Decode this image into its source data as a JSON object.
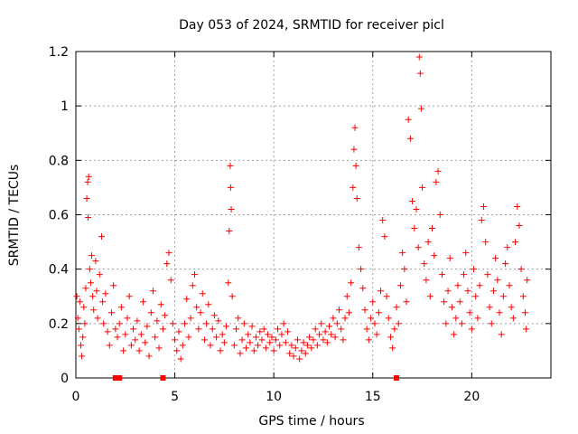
{
  "chart_data": {
    "type": "scatter",
    "title": "Day 053 of 2024, SRMTID for receiver picl",
    "xlabel": "GPS time / hours",
    "ylabel": "SRMTID / TECUs",
    "xlim": [
      0,
      24
    ],
    "ylim": [
      0,
      1.2
    ],
    "x_ticks": [
      0,
      5,
      10,
      15,
      20
    ],
    "x_tick_labels": [
      "0",
      "5",
      "10",
      "15",
      "20"
    ],
    "y_ticks": [
      0,
      0.2,
      0.4,
      0.6,
      0.8,
      1.0,
      1.2
    ],
    "y_tick_labels": [
      "0",
      "0.2",
      "0.4",
      "0.6",
      "0.8",
      "1",
      "1.2"
    ],
    "grid": true,
    "marker": "plus",
    "color": "#ff0000",
    "series": [
      {
        "name": "SRMTID",
        "points": [
          [
            0.05,
            0.3
          ],
          [
            0.1,
            0.22
          ],
          [
            0.15,
            0.18
          ],
          [
            0.2,
            0.28
          ],
          [
            0.25,
            0.12
          ],
          [
            0.3,
            0.08
          ],
          [
            0.35,
            0.15
          ],
          [
            0.4,
            0.26
          ],
          [
            0.45,
            0.2
          ],
          [
            0.5,
            0.33
          ],
          [
            0.55,
            0.66
          ],
          [
            0.6,
            0.72
          ],
          [
            0.62,
            0.59
          ],
          [
            0.65,
            0.74
          ],
          [
            0.7,
            0.4
          ],
          [
            0.75,
            0.35
          ],
          [
            0.8,
            0.45
          ],
          [
            0.85,
            0.3
          ],
          [
            0.9,
            0.25
          ],
          [
            1.0,
            0.43
          ],
          [
            1.05,
            0.32
          ],
          [
            1.1,
            0.22
          ],
          [
            1.2,
            0.38
          ],
          [
            1.3,
            0.52
          ],
          [
            1.35,
            0.28
          ],
          [
            1.4,
            0.2
          ],
          [
            1.5,
            0.31
          ],
          [
            1.6,
            0.17
          ],
          [
            1.7,
            0.12
          ],
          [
            1.8,
            0.24
          ],
          [
            1.9,
            0.34
          ],
          [
            2.0,
            0.18
          ],
          [
            2.1,
            0.15
          ],
          [
            2.2,
            0.2
          ],
          [
            2.3,
            0.26
          ],
          [
            2.4,
            0.1
          ],
          [
            2.5,
            0.16
          ],
          [
            2.6,
            0.22
          ],
          [
            2.7,
            0.3
          ],
          [
            2.8,
            0.12
          ],
          [
            2.9,
            0.18
          ],
          [
            3.0,
            0.14
          ],
          [
            3.1,
            0.21
          ],
          [
            3.2,
            0.1
          ],
          [
            3.3,
            0.16
          ],
          [
            3.4,
            0.28
          ],
          [
            3.5,
            0.13
          ],
          [
            3.6,
            0.19
          ],
          [
            3.7,
            0.08
          ],
          [
            3.8,
            0.24
          ],
          [
            3.9,
            0.32
          ],
          [
            4.0,
            0.15
          ],
          [
            4.1,
            0.21
          ],
          [
            4.2,
            0.11
          ],
          [
            4.3,
            0.27
          ],
          [
            4.4,
            0.18
          ],
          [
            4.5,
            0.23
          ],
          [
            4.6,
            0.42
          ],
          [
            4.7,
            0.46
          ],
          [
            4.8,
            0.36
          ],
          [
            4.9,
            0.2
          ],
          [
            5.0,
            0.14
          ],
          [
            5.1,
            0.1
          ],
          [
            5.2,
            0.17
          ],
          [
            5.3,
            0.07
          ],
          [
            5.4,
            0.12
          ],
          [
            5.5,
            0.2
          ],
          [
            5.6,
            0.29
          ],
          [
            5.7,
            0.15
          ],
          [
            5.8,
            0.22
          ],
          [
            5.9,
            0.34
          ],
          [
            6.0,
            0.38
          ],
          [
            6.1,
            0.26
          ],
          [
            6.2,
            0.18
          ],
          [
            6.3,
            0.24
          ],
          [
            6.4,
            0.31
          ],
          [
            6.5,
            0.14
          ],
          [
            6.6,
            0.2
          ],
          [
            6.7,
            0.27
          ],
          [
            6.8,
            0.12
          ],
          [
            6.9,
            0.18
          ],
          [
            7.0,
            0.23
          ],
          [
            7.1,
            0.15
          ],
          [
            7.2,
            0.21
          ],
          [
            7.3,
            0.1
          ],
          [
            7.4,
            0.16
          ],
          [
            7.5,
            0.13
          ],
          [
            7.6,
            0.19
          ],
          [
            7.7,
            0.35
          ],
          [
            7.75,
            0.54
          ],
          [
            7.8,
            0.78
          ],
          [
            7.82,
            0.7
          ],
          [
            7.85,
            0.62
          ],
          [
            7.9,
            0.3
          ],
          [
            8.0,
            0.12
          ],
          [
            8.1,
            0.18
          ],
          [
            8.2,
            0.22
          ],
          [
            8.3,
            0.09
          ],
          [
            8.4,
            0.14
          ],
          [
            8.5,
            0.2
          ],
          [
            8.6,
            0.11
          ],
          [
            8.7,
            0.16
          ],
          [
            8.8,
            0.13
          ],
          [
            8.9,
            0.19
          ],
          [
            9.0,
            0.1
          ],
          [
            9.1,
            0.15
          ],
          [
            9.2,
            0.12
          ],
          [
            9.3,
            0.17
          ],
          [
            9.4,
            0.14
          ],
          [
            9.5,
            0.18
          ],
          [
            9.6,
            0.11
          ],
          [
            9.7,
            0.16
          ],
          [
            9.8,
            0.13
          ],
          [
            9.9,
            0.15
          ],
          [
            10.0,
            0.1
          ],
          [
            10.1,
            0.14
          ],
          [
            10.2,
            0.18
          ],
          [
            10.3,
            0.12
          ],
          [
            10.4,
            0.16
          ],
          [
            10.5,
            0.2
          ],
          [
            10.6,
            0.13
          ],
          [
            10.7,
            0.17
          ],
          [
            10.8,
            0.09
          ],
          [
            10.9,
            0.12
          ],
          [
            11.0,
            0.08
          ],
          [
            11.1,
            0.11
          ],
          [
            11.2,
            0.14
          ],
          [
            11.3,
            0.07
          ],
          [
            11.4,
            0.1
          ],
          [
            11.5,
            0.13
          ],
          [
            11.6,
            0.09
          ],
          [
            11.7,
            0.12
          ],
          [
            11.8,
            0.15
          ],
          [
            11.9,
            0.11
          ],
          [
            12.0,
            0.14
          ],
          [
            12.1,
            0.18
          ],
          [
            12.2,
            0.12
          ],
          [
            12.3,
            0.16
          ],
          [
            12.4,
            0.2
          ],
          [
            12.5,
            0.14
          ],
          [
            12.6,
            0.17
          ],
          [
            12.7,
            0.13
          ],
          [
            12.8,
            0.19
          ],
          [
            12.9,
            0.16
          ],
          [
            13.0,
            0.22
          ],
          [
            13.1,
            0.15
          ],
          [
            13.2,
            0.2
          ],
          [
            13.3,
            0.25
          ],
          [
            13.4,
            0.18
          ],
          [
            13.5,
            0.14
          ],
          [
            13.6,
            0.22
          ],
          [
            13.7,
            0.3
          ],
          [
            13.8,
            0.24
          ],
          [
            13.9,
            0.35
          ],
          [
            14.0,
            0.7
          ],
          [
            14.05,
            0.84
          ],
          [
            14.1,
            0.92
          ],
          [
            14.15,
            0.78
          ],
          [
            14.2,
            0.66
          ],
          [
            14.3,
            0.48
          ],
          [
            14.4,
            0.4
          ],
          [
            14.5,
            0.33
          ],
          [
            14.6,
            0.25
          ],
          [
            14.7,
            0.18
          ],
          [
            14.8,
            0.14
          ],
          [
            14.9,
            0.22
          ],
          [
            15.0,
            0.28
          ],
          [
            15.1,
            0.2
          ],
          [
            15.2,
            0.16
          ],
          [
            15.3,
            0.24
          ],
          [
            15.4,
            0.32
          ],
          [
            15.5,
            0.58
          ],
          [
            15.6,
            0.52
          ],
          [
            15.7,
            0.3
          ],
          [
            15.8,
            0.22
          ],
          [
            15.9,
            0.15
          ],
          [
            16.0,
            0.11
          ],
          [
            16.1,
            0.18
          ],
          [
            16.2,
            0.26
          ],
          [
            16.3,
            0.2
          ],
          [
            16.4,
            0.34
          ],
          [
            16.5,
            0.46
          ],
          [
            16.6,
            0.4
          ],
          [
            16.7,
            0.28
          ],
          [
            16.8,
            0.95
          ],
          [
            16.9,
            0.88
          ],
          [
            17.0,
            0.65
          ],
          [
            17.1,
            0.55
          ],
          [
            17.2,
            0.62
          ],
          [
            17.3,
            0.48
          ],
          [
            17.35,
            1.18
          ],
          [
            17.4,
            1.12
          ],
          [
            17.45,
            0.99
          ],
          [
            17.5,
            0.7
          ],
          [
            17.6,
            0.42
          ],
          [
            17.7,
            0.36
          ],
          [
            17.8,
            0.5
          ],
          [
            17.9,
            0.3
          ],
          [
            18.0,
            0.55
          ],
          [
            18.1,
            0.45
          ],
          [
            18.2,
            0.72
          ],
          [
            18.3,
            0.76
          ],
          [
            18.4,
            0.6
          ],
          [
            18.5,
            0.38
          ],
          [
            18.6,
            0.28
          ],
          [
            18.7,
            0.2
          ],
          [
            18.8,
            0.32
          ],
          [
            18.9,
            0.44
          ],
          [
            19.0,
            0.26
          ],
          [
            19.1,
            0.16
          ],
          [
            19.2,
            0.22
          ],
          [
            19.3,
            0.34
          ],
          [
            19.4,
            0.28
          ],
          [
            19.5,
            0.2
          ],
          [
            19.6,
            0.38
          ],
          [
            19.7,
            0.46
          ],
          [
            19.8,
            0.32
          ],
          [
            19.9,
            0.24
          ],
          [
            20.0,
            0.18
          ],
          [
            20.1,
            0.4
          ],
          [
            20.2,
            0.3
          ],
          [
            20.3,
            0.22
          ],
          [
            20.4,
            0.34
          ],
          [
            20.5,
            0.58
          ],
          [
            20.6,
            0.63
          ],
          [
            20.7,
            0.5
          ],
          [
            20.8,
            0.38
          ],
          [
            20.9,
            0.26
          ],
          [
            21.0,
            0.2
          ],
          [
            21.1,
            0.32
          ],
          [
            21.2,
            0.44
          ],
          [
            21.3,
            0.36
          ],
          [
            21.4,
            0.24
          ],
          [
            21.5,
            0.16
          ],
          [
            21.6,
            0.3
          ],
          [
            21.7,
            0.42
          ],
          [
            21.8,
            0.48
          ],
          [
            21.9,
            0.34
          ],
          [
            22.0,
            0.26
          ],
          [
            22.1,
            0.22
          ],
          [
            22.2,
            0.5
          ],
          [
            22.3,
            0.63
          ],
          [
            22.4,
            0.56
          ],
          [
            22.5,
            0.4
          ],
          [
            22.6,
            0.3
          ],
          [
            22.7,
            0.24
          ],
          [
            22.75,
            0.18
          ],
          [
            22.8,
            0.36
          ]
        ]
      }
    ],
    "zero_markers": [
      2.0,
      2.2,
      4.4,
      16.2
    ]
  }
}
